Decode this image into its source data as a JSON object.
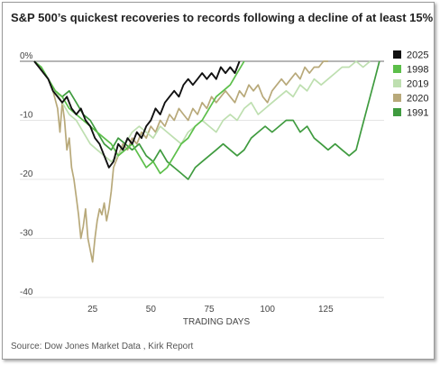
{
  "title": "S&P 500’s quickest recoveries to records following a decline of at least 15%",
  "source": "Source: Dow Jones Market Data , Kirk Report",
  "chart_data": {
    "type": "line",
    "xlabel": "TRADING DAYS",
    "ylabel": "",
    "xlim": [
      0,
      150
    ],
    "ylim": [
      -40,
      0
    ],
    "x_ticks": [
      25,
      50,
      75,
      100,
      125
    ],
    "y_ticks": [
      0,
      -10,
      -20,
      -30,
      -40
    ],
    "y_tick_labels": [
      "0%",
      "-10",
      "-20",
      "-30",
      "-40"
    ],
    "grid": "horizontal",
    "legend_position": "right",
    "series": [
      {
        "name": "1991",
        "color": "#3f9b3f",
        "points": [
          [
            0,
            0
          ],
          [
            3,
            -1
          ],
          [
            6,
            -3
          ],
          [
            9,
            -5
          ],
          [
            12,
            -6
          ],
          [
            15,
            -5
          ],
          [
            18,
            -7
          ],
          [
            21,
            -9
          ],
          [
            24,
            -10
          ],
          [
            27,
            -12
          ],
          [
            30,
            -14
          ],
          [
            33,
            -15
          ],
          [
            36,
            -13
          ],
          [
            39,
            -14
          ],
          [
            42,
            -15
          ],
          [
            45,
            -14
          ],
          [
            48,
            -16
          ],
          [
            51,
            -17
          ],
          [
            54,
            -15
          ],
          [
            57,
            -17
          ],
          [
            60,
            -18
          ],
          [
            63,
            -19
          ],
          [
            66,
            -20
          ],
          [
            69,
            -18
          ],
          [
            72,
            -17
          ],
          [
            75,
            -16
          ],
          [
            78,
            -15
          ],
          [
            81,
            -14
          ],
          [
            84,
            -15
          ],
          [
            87,
            -16
          ],
          [
            90,
            -15
          ],
          [
            93,
            -13
          ],
          [
            96,
            -12
          ],
          [
            99,
            -11
          ],
          [
            102,
            -12
          ],
          [
            105,
            -11
          ],
          [
            108,
            -10
          ],
          [
            111,
            -10
          ],
          [
            114,
            -12
          ],
          [
            117,
            -11
          ],
          [
            120,
            -13
          ],
          [
            123,
            -14
          ],
          [
            126,
            -15
          ],
          [
            129,
            -14
          ],
          [
            132,
            -15
          ],
          [
            135,
            -16
          ],
          [
            138,
            -15
          ],
          [
            140,
            -12
          ],
          [
            142,
            -9
          ],
          [
            144,
            -6
          ],
          [
            146,
            -3
          ],
          [
            148,
            0
          ]
        ]
      },
      {
        "name": "2020",
        "color": "#b8a97a",
        "points": [
          [
            0,
            0
          ],
          [
            2,
            -1
          ],
          [
            4,
            -2
          ],
          [
            6,
            -3
          ],
          [
            8,
            -5
          ],
          [
            10,
            -8
          ],
          [
            11,
            -12
          ],
          [
            12,
            -7
          ],
          [
            13,
            -10
          ],
          [
            14,
            -15
          ],
          [
            15,
            -13
          ],
          [
            16,
            -18
          ],
          [
            17,
            -20
          ],
          [
            18,
            -23
          ],
          [
            19,
            -26
          ],
          [
            20,
            -30
          ],
          [
            21,
            -28
          ],
          [
            22,
            -25
          ],
          [
            23,
            -30
          ],
          [
            24,
            -32
          ],
          [
            25,
            -34
          ],
          [
            26,
            -30
          ],
          [
            27,
            -27
          ],
          [
            28,
            -25
          ],
          [
            29,
            -26
          ],
          [
            30,
            -24
          ],
          [
            31,
            -27
          ],
          [
            32,
            -25
          ],
          [
            33,
            -22
          ],
          [
            34,
            -18
          ],
          [
            35,
            -17
          ],
          [
            36,
            -16
          ],
          [
            37,
            -15
          ],
          [
            38,
            -14
          ],
          [
            40,
            -15
          ],
          [
            42,
            -13
          ],
          [
            44,
            -14
          ],
          [
            46,
            -12
          ],
          [
            48,
            -13
          ],
          [
            50,
            -11
          ],
          [
            52,
            -12
          ],
          [
            54,
            -10
          ],
          [
            56,
            -11
          ],
          [
            58,
            -9
          ],
          [
            60,
            -10
          ],
          [
            62,
            -8
          ],
          [
            64,
            -9
          ],
          [
            66,
            -10
          ],
          [
            68,
            -8
          ],
          [
            70,
            -9
          ],
          [
            72,
            -7
          ],
          [
            74,
            -8
          ],
          [
            76,
            -6
          ],
          [
            78,
            -7
          ],
          [
            80,
            -6
          ],
          [
            82,
            -5
          ],
          [
            84,
            -6
          ],
          [
            86,
            -7
          ],
          [
            88,
            -5
          ],
          [
            90,
            -6
          ],
          [
            92,
            -4
          ],
          [
            94,
            -5
          ],
          [
            96,
            -4
          ],
          [
            98,
            -6
          ],
          [
            100,
            -7
          ],
          [
            102,
            -5
          ],
          [
            104,
            -4
          ],
          [
            106,
            -3
          ],
          [
            108,
            -4
          ],
          [
            110,
            -3
          ],
          [
            112,
            -2
          ],
          [
            114,
            -3
          ],
          [
            116,
            -1
          ],
          [
            118,
            -2
          ],
          [
            120,
            -1
          ],
          [
            122,
            -1
          ],
          [
            124,
            0
          ],
          [
            126,
            0
          ]
        ]
      },
      {
        "name": "2019",
        "color": "#bedfb0",
        "points": [
          [
            0,
            0
          ],
          [
            3,
            -1
          ],
          [
            6,
            -3
          ],
          [
            9,
            -5
          ],
          [
            12,
            -7
          ],
          [
            15,
            -9
          ],
          [
            18,
            -10
          ],
          [
            21,
            -12
          ],
          [
            24,
            -14
          ],
          [
            27,
            -15
          ],
          [
            30,
            -16
          ],
          [
            33,
            -17
          ],
          [
            36,
            -16
          ],
          [
            39,
            -14
          ],
          [
            42,
            -12
          ],
          [
            45,
            -11
          ],
          [
            48,
            -12
          ],
          [
            51,
            -13
          ],
          [
            54,
            -11
          ],
          [
            57,
            -12
          ],
          [
            60,
            -13
          ],
          [
            63,
            -14
          ],
          [
            66,
            -12
          ],
          [
            69,
            -11
          ],
          [
            72,
            -10
          ],
          [
            75,
            -11
          ],
          [
            78,
            -12
          ],
          [
            81,
            -10
          ],
          [
            84,
            -9
          ],
          [
            87,
            -10
          ],
          [
            90,
            -8
          ],
          [
            93,
            -7
          ],
          [
            96,
            -9
          ],
          [
            99,
            -8
          ],
          [
            102,
            -7
          ],
          [
            105,
            -6
          ],
          [
            108,
            -5
          ],
          [
            111,
            -6
          ],
          [
            114,
            -4
          ],
          [
            117,
            -5
          ],
          [
            120,
            -3
          ],
          [
            123,
            -4
          ],
          [
            126,
            -3
          ],
          [
            129,
            -2
          ],
          [
            132,
            -1
          ],
          [
            135,
            -1
          ],
          [
            138,
            0
          ],
          [
            141,
            -1
          ],
          [
            144,
            0
          ]
        ]
      },
      {
        "name": "1998",
        "color": "#5cbf4a",
        "points": [
          [
            0,
            0
          ],
          [
            3,
            -1
          ],
          [
            6,
            -3
          ],
          [
            9,
            -5
          ],
          [
            12,
            -6
          ],
          [
            15,
            -8
          ],
          [
            18,
            -9
          ],
          [
            21,
            -10
          ],
          [
            24,
            -11
          ],
          [
            27,
            -12
          ],
          [
            30,
            -13
          ],
          [
            33,
            -14
          ],
          [
            36,
            -16
          ],
          [
            39,
            -15
          ],
          [
            42,
            -14
          ],
          [
            45,
            -16
          ],
          [
            48,
            -18
          ],
          [
            51,
            -17
          ],
          [
            54,
            -19
          ],
          [
            57,
            -18
          ],
          [
            60,
            -16
          ],
          [
            63,
            -14
          ],
          [
            66,
            -13
          ],
          [
            69,
            -11
          ],
          [
            72,
            -10
          ],
          [
            75,
            -8
          ],
          [
            78,
            -6
          ],
          [
            81,
            -5
          ],
          [
            84,
            -4
          ],
          [
            87,
            -2
          ],
          [
            90,
            0
          ]
        ]
      },
      {
        "name": "2025",
        "color": "#111111",
        "points": [
          [
            0,
            0
          ],
          [
            2,
            -1
          ],
          [
            4,
            -2
          ],
          [
            6,
            -3
          ],
          [
            8,
            -5
          ],
          [
            10,
            -6
          ],
          [
            12,
            -7
          ],
          [
            14,
            -6
          ],
          [
            16,
            -8
          ],
          [
            18,
            -9
          ],
          [
            20,
            -8
          ],
          [
            22,
            -10
          ],
          [
            24,
            -11
          ],
          [
            26,
            -13
          ],
          [
            28,
            -14
          ],
          [
            30,
            -16
          ],
          [
            32,
            -18
          ],
          [
            34,
            -17
          ],
          [
            36,
            -14
          ],
          [
            38,
            -15
          ],
          [
            40,
            -13
          ],
          [
            42,
            -14
          ],
          [
            44,
            -12
          ],
          [
            46,
            -13
          ],
          [
            48,
            -11
          ],
          [
            50,
            -10
          ],
          [
            52,
            -8
          ],
          [
            54,
            -9
          ],
          [
            56,
            -7
          ],
          [
            58,
            -6
          ],
          [
            60,
            -5
          ],
          [
            62,
            -6
          ],
          [
            64,
            -4
          ],
          [
            66,
            -3
          ],
          [
            68,
            -4
          ],
          [
            70,
            -3
          ],
          [
            72,
            -2
          ],
          [
            74,
            -3
          ],
          [
            76,
            -2
          ],
          [
            78,
            -3
          ],
          [
            80,
            -1
          ],
          [
            82,
            -2
          ],
          [
            84,
            -1
          ],
          [
            86,
            -2
          ],
          [
            88,
            0
          ]
        ]
      }
    ]
  }
}
